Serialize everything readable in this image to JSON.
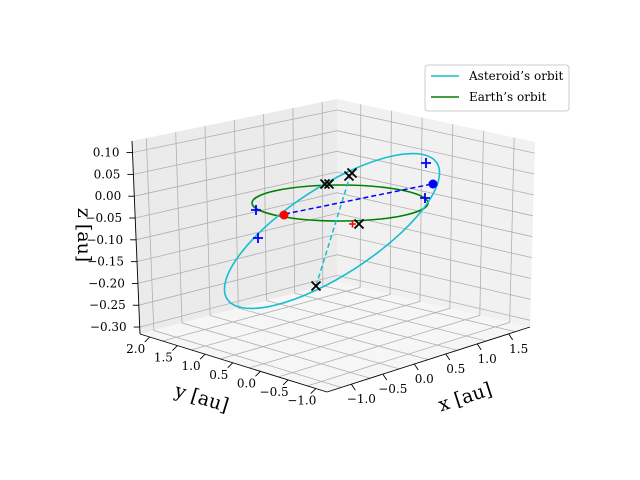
{
  "chart_data": {
    "type": "line",
    "projection": "3d",
    "xlabel": "x [au]",
    "ylabel": "y [au]",
    "zlabel": "z [au]",
    "xlim": [
      -1.2,
      1.9
    ],
    "ylim": [
      -1.2,
      2.3
    ],
    "zlim": [
      -0.31,
      0.11
    ],
    "x_ticks": [
      "−1.0",
      "−0.5",
      "0.0",
      "0.5",
      "1.0",
      "1.5"
    ],
    "y_ticks": [
      "−1.0",
      "−0.5",
      "0.0",
      "0.5",
      "1.0",
      "1.5",
      "2.0"
    ],
    "z_ticks": [
      "0.10",
      "0.05",
      "0.00",
      "−0.05",
      "−0.10",
      "−0.15",
      "−0.20",
      "−0.25",
      "−0.30"
    ],
    "grid": true,
    "legend_position": "top-right",
    "series": [
      {
        "name": "Asteroid’s orbit",
        "color": "#17becf",
        "style": "solid",
        "kind": "ellipse"
      },
      {
        "name": "Earth’s orbit",
        "color": "#008000",
        "style": "solid",
        "kind": "circle"
      }
    ],
    "lines_of_nodes": [
      {
        "color": "#0000ff",
        "style": "dashed"
      },
      {
        "color": "#17becf",
        "style": "dashed"
      }
    ],
    "markers": {
      "red_dot_color": "#ff0000",
      "blue_dot_color": "#0000ff",
      "plus_color": "#0000ff",
      "cross_color": "#000000"
    }
  }
}
